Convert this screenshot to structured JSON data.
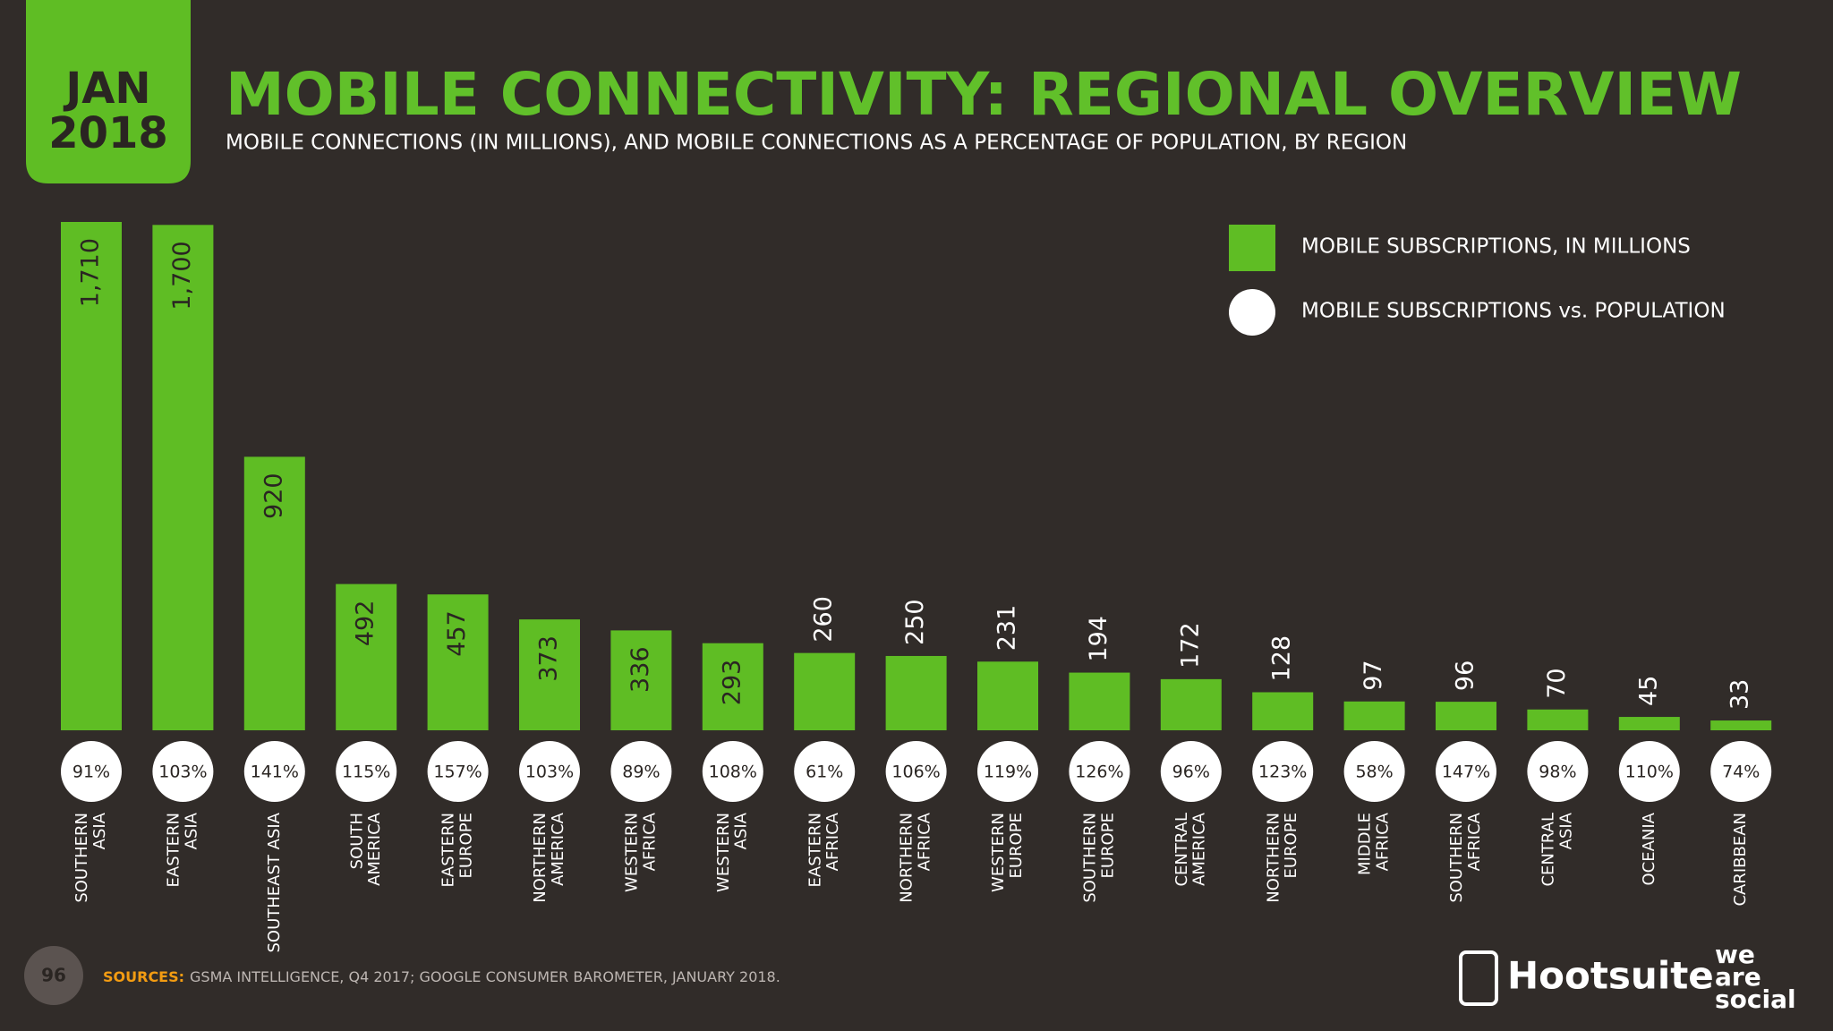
{
  "header": {
    "badge_month": "JAN",
    "badge_year": "2018"
  },
  "chart_data": {
    "type": "bar",
    "title": "MOBILE CONNECTIVITY: REGIONAL OVERVIEW",
    "subtitle": "MOBILE CONNECTIONS (IN MILLIONS), AND MOBILE CONNECTIONS AS A PERCENTAGE OF POPULATION, BY REGION",
    "categories": [
      "SOUTHERN\nASIA",
      "EASTERN\nASIA",
      "SOUTHEAST ASIA",
      "SOUTH\nAMERICA",
      "EASTERN\nEUROPE",
      "NORTHERN\nAMERICA",
      "WESTERN\nAFRICA",
      "WESTERN\nASIA",
      "EASTERN\nAFRICA",
      "NORTHERN\nAFRICA",
      "WESTERN\nEUROPE",
      "SOUTHERN\nEUROPE",
      "CENTRAL\nAMERICA",
      "NORTHERN\nEUROPE",
      "MIDDLE\nAFRICA",
      "SOUTHERN\nAFRICA",
      "CENTRAL\nASIA",
      "OCEANIA",
      "CARIBBEAN"
    ],
    "series": [
      {
        "name": "MOBILE SUBSCRIPTIONS, IN MILLIONS",
        "color": "#5fbd24",
        "values": [
          1710,
          1700,
          920,
          492,
          457,
          373,
          336,
          293,
          260,
          250,
          231,
          194,
          172,
          128,
          97,
          96,
          70,
          45,
          33
        ],
        "value_labels": [
          "1,710",
          "1,700",
          "920",
          "492",
          "457",
          "373",
          "336",
          "293",
          "260",
          "250",
          "231",
          "194",
          "172",
          "128",
          "97",
          "96",
          "70",
          "45",
          "33"
        ]
      },
      {
        "name": "MOBILE SUBSCRIPTIONS vs. POPULATION",
        "color": "#ffffff",
        "values": [
          91,
          103,
          141,
          115,
          157,
          103,
          89,
          108,
          61,
          106,
          119,
          126,
          96,
          123,
          58,
          147,
          98,
          110,
          74
        ],
        "value_labels": [
          "91%",
          "103%",
          "141%",
          "115%",
          "157%",
          "103%",
          "89%",
          "108%",
          "61%",
          "106%",
          "119%",
          "126%",
          "96%",
          "123%",
          "58%",
          "147%",
          "98%",
          "110%",
          "74%"
        ]
      }
    ]
  },
  "footer": {
    "page": "96",
    "sources_label": "SOURCES:",
    "sources": "GSMA INTELLIGENCE, Q4 2017; GOOGLE CONSUMER BAROMETER, JANUARY 2018.",
    "brand1": "Hootsuite",
    "brand2": [
      "we",
      "are",
      "social"
    ]
  }
}
